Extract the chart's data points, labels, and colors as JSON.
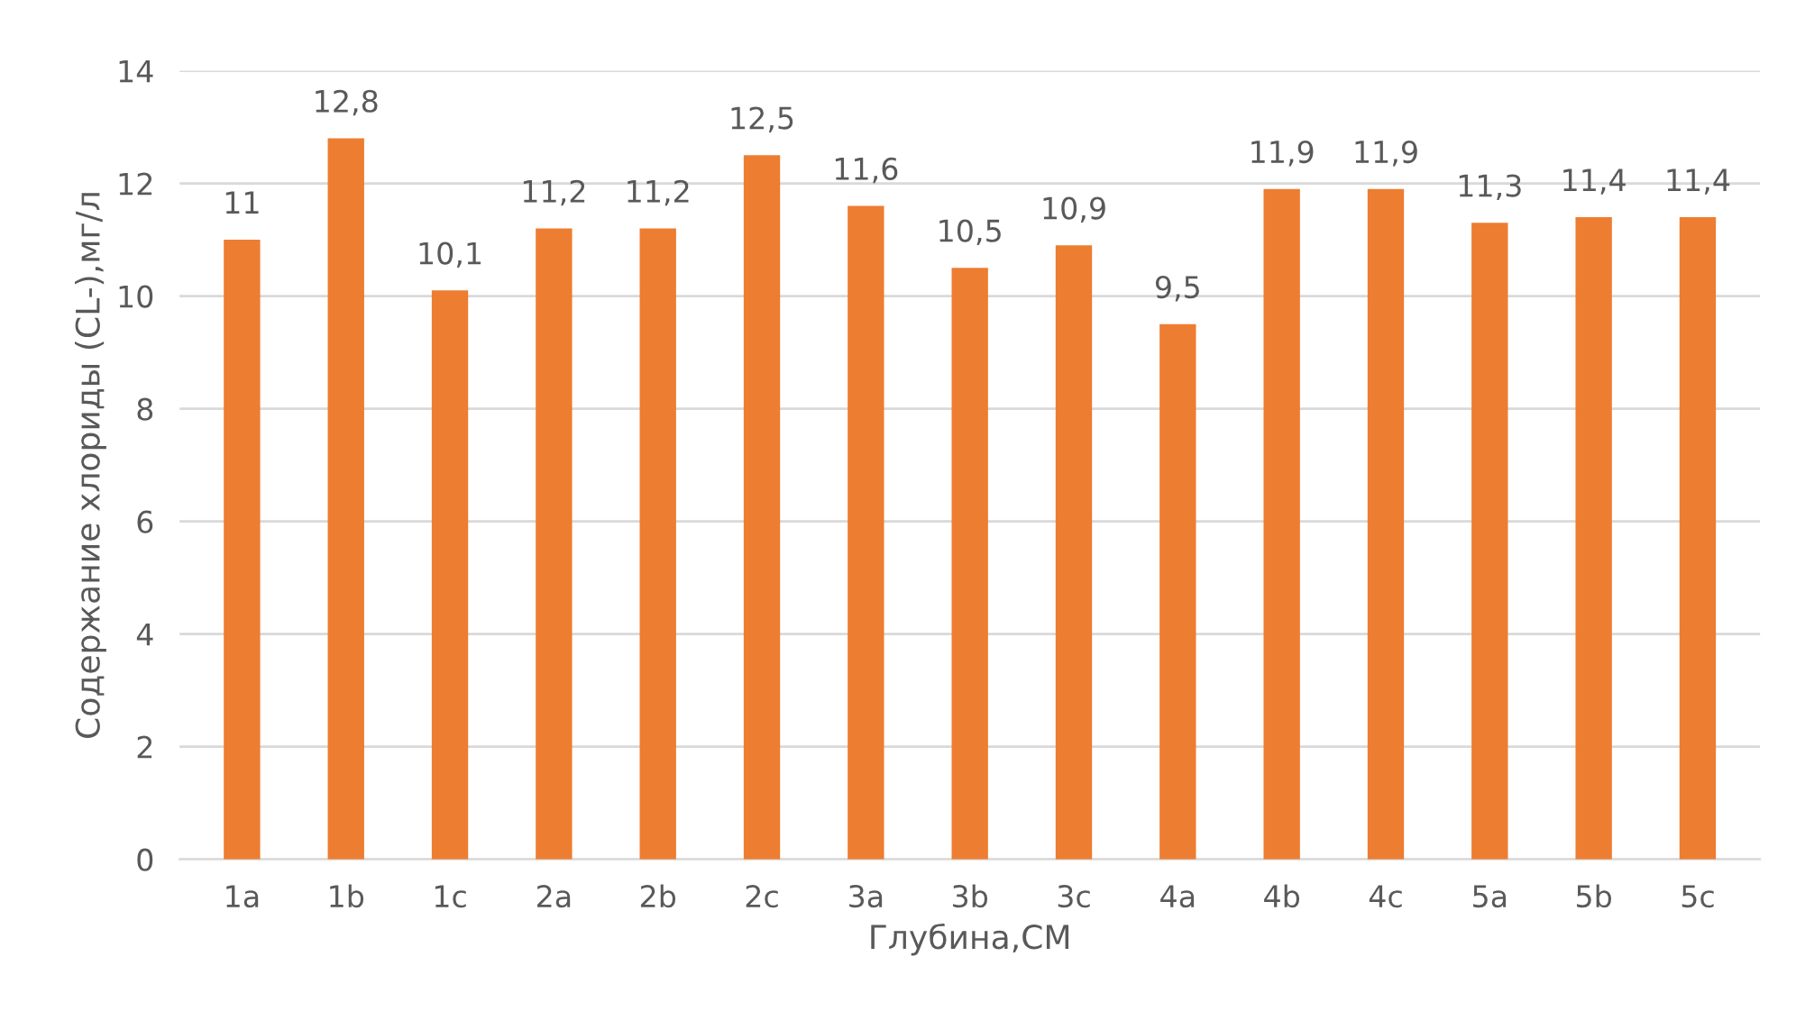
{
  "chart_data": {
    "type": "bar",
    "xlabel": "Глубина,СМ",
    "ylabel": "Содержание хлориды (CL-),мг/л",
    "categories": [
      "1a",
      "1b",
      "1c",
      "2a",
      "2b",
      "2c",
      "3a",
      "3b",
      "3c",
      "4a",
      "4b",
      "4c",
      "5a",
      "5b",
      "5c"
    ],
    "values": [
      11,
      12.8,
      10.1,
      11.2,
      11.2,
      12.5,
      11.6,
      10.5,
      10.9,
      9.5,
      11.9,
      11.9,
      11.3,
      11.4,
      11.4
    ],
    "value_labels": [
      "11",
      "12,8",
      "10,1",
      "11,2",
      "11,2",
      "12,5",
      "11,6",
      "10,5",
      "10,9",
      "9,5",
      "11,9",
      "11,9",
      "11,3",
      "11,4",
      "11,4"
    ],
    "color": "#ed7d31",
    "ylim": [
      0,
      14
    ],
    "yticks": [
      0,
      2,
      4,
      6,
      8,
      10,
      12,
      14
    ],
    "grid": "y",
    "legend": false
  }
}
